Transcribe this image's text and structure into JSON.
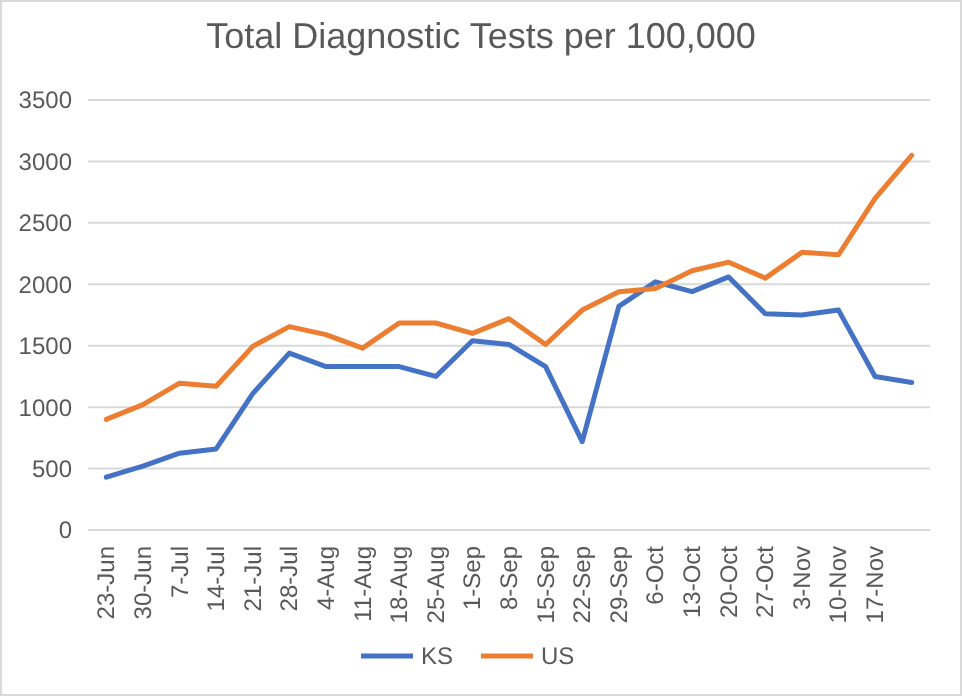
{
  "chart_data": {
    "type": "line",
    "title": "Total Diagnostic Tests per 100,000",
    "categories": [
      "23-Jun",
      "30-Jun",
      "7-Jul",
      "14-Jul",
      "21-Jul",
      "28-Jul",
      "4-Aug",
      "11-Aug",
      "18-Aug",
      "25-Aug",
      "1-Sep",
      "8-Sep",
      "15-Sep",
      "22-Sep",
      "29-Sep",
      "6-Oct",
      "13-Oct",
      "20-Oct",
      "27-Oct",
      "3-Nov",
      "10-Nov",
      "17-Nov",
      null
    ],
    "series": [
      {
        "name": "KS",
        "color": "#4472c4",
        "values": [
          430,
          520,
          625,
          660,
          1110,
          1440,
          1330,
          1330,
          1330,
          1250,
          1540,
          1510,
          1330,
          720,
          1820,
          2020,
          1940,
          2060,
          1760,
          1750,
          1790,
          1250,
          1200
        ]
      },
      {
        "name": "US",
        "color": "#ed7d31",
        "values": [
          900,
          1020,
          1195,
          1170,
          1495,
          1655,
          1590,
          1480,
          1685,
          1685,
          1600,
          1720,
          1510,
          1790,
          1940,
          1965,
          2110,
          2180,
          2050,
          2260,
          2240,
          2700,
          3050
        ]
      }
    ],
    "ylim": [
      0,
      3500
    ],
    "yticks": [
      0,
      500,
      1000,
      1500,
      2000,
      2500,
      3000,
      3500
    ],
    "grid": "y",
    "legend": "bottom",
    "marker": "none",
    "line_style": "solid"
  }
}
